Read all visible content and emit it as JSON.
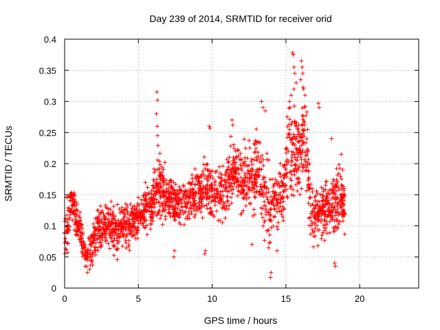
{
  "chart_data": {
    "type": "scatter",
    "title": "Day 239 of 2014, SRMTID for receiver orid",
    "xlabel": "GPS time / hours",
    "ylabel": "SRMTID / TECUs",
    "xlim": [
      0,
      24
    ],
    "ylim": [
      0,
      0.4
    ],
    "xticks": [
      0,
      5,
      10,
      15,
      20
    ],
    "yticks": [
      0,
      0.05,
      0.1,
      0.15,
      0.2,
      0.25,
      0.3,
      0.35,
      0.4
    ],
    "ytick_labels": [
      "0",
      "0.05",
      "0.1",
      "0.15",
      "0.2",
      "0.25",
      "0.3",
      "0.35",
      "0.4"
    ],
    "grid": true,
    "marker": "+",
    "color": "#ff0000",
    "profile": [
      [
        0.0,
        0.09,
        0.025
      ],
      [
        0.3,
        0.11,
        0.03
      ],
      [
        0.5,
        0.14,
        0.025
      ],
      [
        0.8,
        0.11,
        0.025
      ],
      [
        1.1,
        0.09,
        0.02
      ],
      [
        1.4,
        0.05,
        0.015
      ],
      [
        1.8,
        0.07,
        0.02
      ],
      [
        2.2,
        0.09,
        0.025
      ],
      [
        2.8,
        0.1,
        0.025
      ],
      [
        3.5,
        0.09,
        0.025
      ],
      [
        4.2,
        0.1,
        0.025
      ],
      [
        4.8,
        0.11,
        0.02
      ],
      [
        5.2,
        0.12,
        0.02
      ],
      [
        5.8,
        0.13,
        0.025
      ],
      [
        6.3,
        0.17,
        0.04
      ],
      [
        6.8,
        0.15,
        0.025
      ],
      [
        7.5,
        0.14,
        0.025
      ],
      [
        8.2,
        0.14,
        0.025
      ],
      [
        9.0,
        0.15,
        0.025
      ],
      [
        9.8,
        0.16,
        0.03
      ],
      [
        10.5,
        0.15,
        0.03
      ],
      [
        11.0,
        0.17,
        0.035
      ],
      [
        11.5,
        0.19,
        0.03
      ],
      [
        12.0,
        0.17,
        0.035
      ],
      [
        12.6,
        0.18,
        0.035
      ],
      [
        13.2,
        0.18,
        0.04
      ],
      [
        13.8,
        0.12,
        0.045
      ],
      [
        14.3,
        0.14,
        0.03
      ],
      [
        14.8,
        0.16,
        0.035
      ],
      [
        15.3,
        0.23,
        0.06
      ],
      [
        15.8,
        0.21,
        0.045
      ],
      [
        16.3,
        0.25,
        0.05
      ],
      [
        16.7,
        0.12,
        0.035
      ],
      [
        17.2,
        0.12,
        0.03
      ],
      [
        17.8,
        0.13,
        0.035
      ],
      [
        18.4,
        0.14,
        0.04
      ],
      [
        19.0,
        0.14,
        0.03
      ]
    ],
    "highlights": [
      [
        6.25,
        0.315
      ],
      [
        6.3,
        0.302
      ],
      [
        6.22,
        0.28
      ],
      [
        6.28,
        0.26
      ],
      [
        6.3,
        0.245
      ],
      [
        9.8,
        0.26
      ],
      [
        9.85,
        0.257
      ],
      [
        11.35,
        0.27
      ],
      [
        11.4,
        0.262
      ],
      [
        13.35,
        0.3
      ],
      [
        13.45,
        0.29
      ],
      [
        13.6,
        0.285
      ],
      [
        13.95,
        0.017
      ],
      [
        14.0,
        0.025
      ],
      [
        15.25,
        0.3
      ],
      [
        15.35,
        0.31
      ],
      [
        15.45,
        0.378
      ],
      [
        15.5,
        0.375
      ],
      [
        15.55,
        0.355
      ],
      [
        15.6,
        0.345
      ],
      [
        15.7,
        0.33
      ],
      [
        16.05,
        0.365
      ],
      [
        16.1,
        0.355
      ],
      [
        16.15,
        0.345
      ],
      [
        16.0,
        0.335
      ],
      [
        16.2,
        0.32
      ],
      [
        16.3,
        0.31
      ],
      [
        17.2,
        0.297
      ],
      [
        17.25,
        0.29
      ],
      [
        18.1,
        0.24
      ],
      [
        18.3,
        0.04
      ],
      [
        18.35,
        0.035
      ],
      [
        18.75,
        0.215
      ],
      [
        18.85,
        0.19
      ],
      [
        7.4,
        0.05
      ],
      [
        7.45,
        0.06
      ],
      [
        9.5,
        0.055
      ],
      [
        9.55,
        0.06
      ],
      [
        1.55,
        0.025
      ],
      [
        1.7,
        0.03
      ],
      [
        12.7,
        0.07
      ],
      [
        14.4,
        0.06
      ]
    ]
  }
}
